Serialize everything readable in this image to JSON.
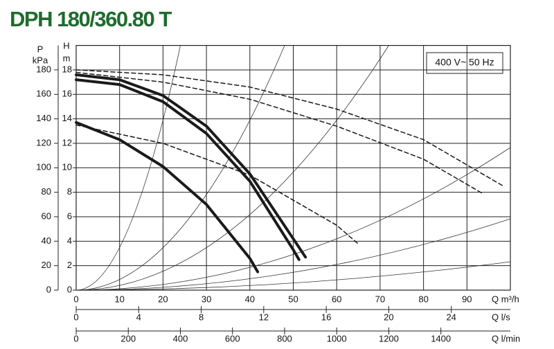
{
  "chart_data": {
    "type": "line",
    "title": "DPH 180/360.80 T",
    "annotation": "400 V~ 50 Hz",
    "xlabel": "Q m³/h",
    "x2label": "Q l/s",
    "x3label": "Q l/min",
    "ylabel": [
      "H",
      "m"
    ],
    "y2label": [
      "P",
      "kPa"
    ],
    "xlim": [
      0,
      100
    ],
    "xticks": [
      0,
      10,
      20,
      30,
      40,
      50,
      60,
      70,
      80,
      90
    ],
    "x2lim": [
      0,
      27.78
    ],
    "x2ticks": [
      0,
      4,
      8,
      12,
      16,
      20,
      24
    ],
    "x3lim": [
      0,
      1666.7
    ],
    "x3ticks": [
      0,
      200,
      400,
      600,
      800,
      1000,
      1200,
      1400
    ],
    "ylim": [
      0,
      20
    ],
    "yticks": [
      0,
      2,
      4,
      6,
      8,
      10,
      12,
      14,
      16,
      18
    ],
    "y2lim": [
      0,
      200
    ],
    "y2ticks": [
      0,
      20,
      40,
      60,
      80,
      100,
      120,
      140,
      160,
      180
    ],
    "grid": true,
    "series": [
      {
        "color": "#1a1a1a",
        "dash": false,
        "x": [
          0,
          10,
          20,
          30,
          40,
          50,
          52.8
        ],
        "values": [
          17.6,
          17.2,
          15.9,
          13.4,
          9.5,
          4.2,
          2.7
        ]
      },
      {
        "color": "#1a1a1a",
        "dash": false,
        "x": [
          0,
          10,
          20,
          30,
          40,
          50,
          51.3
        ],
        "values": [
          17.2,
          16.8,
          15.4,
          12.8,
          8.9,
          3.3,
          2.5
        ]
      },
      {
        "color": "#1a1a1a",
        "dash": false,
        "x": [
          0,
          10,
          20,
          30,
          40,
          41.8
        ],
        "values": [
          13.7,
          12.3,
          10.1,
          7.0,
          2.6,
          1.5
        ]
      },
      {
        "color": "#1a1a1a",
        "dash": true,
        "x": [
          0,
          20,
          40,
          60,
          80,
          98.4
        ],
        "values": [
          18,
          17.6,
          16.6,
          14.8,
          12.3,
          8.5
        ]
      },
      {
        "color": "#1a1a1a",
        "dash": true,
        "x": [
          0,
          20,
          40,
          60,
          80,
          93.6
        ],
        "values": [
          17.8,
          17.0,
          15.6,
          13.4,
          10.7,
          7.9
        ]
      },
      {
        "color": "#1a1a1a",
        "dash": true,
        "x": [
          0,
          20,
          40,
          60,
          64.9
        ],
        "values": [
          13.5,
          12.0,
          9.4,
          5.3,
          3.8
        ]
      }
    ]
  }
}
